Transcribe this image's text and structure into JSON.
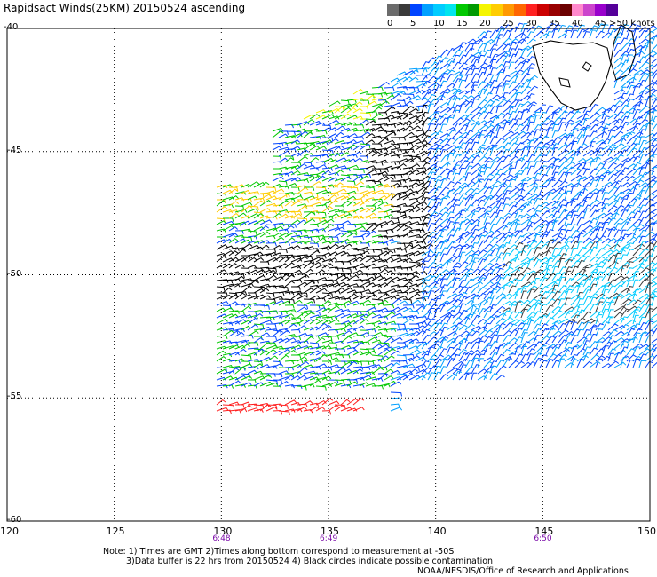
{
  "title": "Rapidsact Winds(25KM) 20150524 ascending",
  "colorbar": {
    "unit_label": ">50 knots",
    "bins": [
      {
        "label": "0",
        "color": "#6b6b6b"
      },
      {
        "label": "",
        "color": "#3a3a3a"
      },
      {
        "label": "5",
        "color": "#0044ff"
      },
      {
        "label": "",
        "color": "#00a0ff"
      },
      {
        "label": "10",
        "color": "#00ccff"
      },
      {
        "label": "",
        "color": "#00e5ee"
      },
      {
        "label": "15",
        "color": "#00c800"
      },
      {
        "label": "",
        "color": "#009900"
      },
      {
        "label": "20",
        "color": "#f5f500"
      },
      {
        "label": "",
        "color": "#ffcc00"
      },
      {
        "label": "25",
        "color": "#ff9900"
      },
      {
        "label": "",
        "color": "#ff6600"
      },
      {
        "label": "30",
        "color": "#ff2020"
      },
      {
        "label": "",
        "color": "#cc0000"
      },
      {
        "label": "35",
        "color": "#990000"
      },
      {
        "label": "",
        "color": "#6b0000"
      },
      {
        "label": "40",
        "color": "#ff88cc"
      },
      {
        "label": "",
        "color": "#cc44cc"
      },
      {
        "label": "45",
        "color": "#9900cc"
      },
      {
        "label": "",
        "color": "#550099"
      }
    ]
  },
  "axes": {
    "lat_labels": [
      "-40",
      "-45",
      "-50",
      "-55",
      "-60"
    ],
    "lon_labels": [
      "120",
      "125",
      "130",
      "135",
      "140",
      "145",
      "150"
    ],
    "time_labels": [
      {
        "lon": 130,
        "text": "6:48"
      },
      {
        "lon": 135,
        "text": "6:49"
      },
      {
        "lon": 145,
        "text": "6:50"
      }
    ]
  },
  "notes": {
    "line1": "Note: 1) Times are GMT 2)Times along bottom correspond to measurement at -50S",
    "line2": "3)Data buffer is 22 hrs from 20150524 4) Black circles indicate possible contamination",
    "credit": "NOAA/NESDIS/Office of Research and Applications"
  }
}
